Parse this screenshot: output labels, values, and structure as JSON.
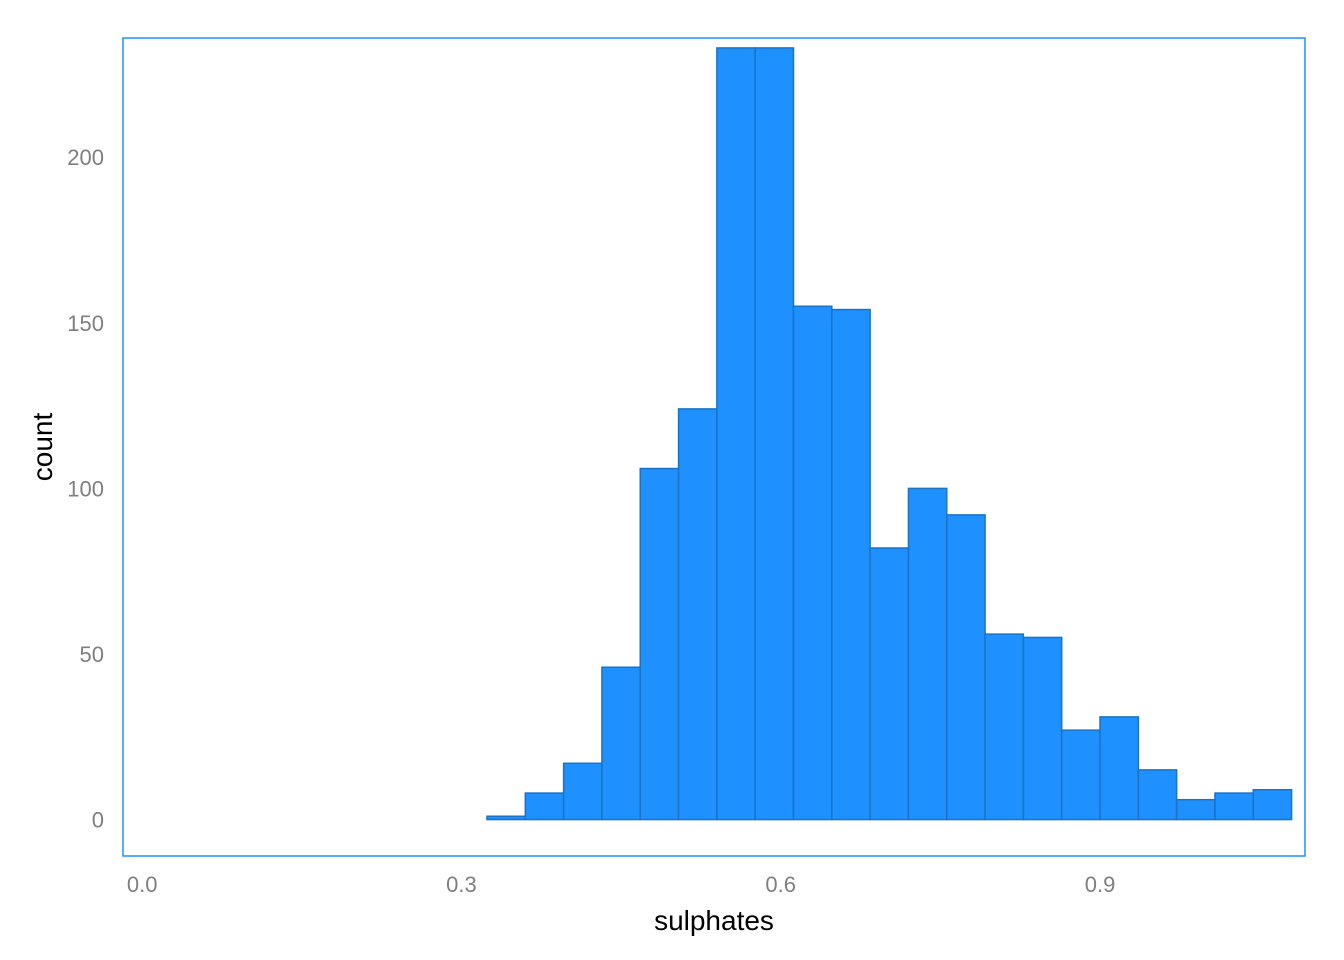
{
  "chart_data": {
    "type": "bar",
    "title": "",
    "xlabel": "sulphates",
    "ylabel": "count",
    "xlim": [
      -0.018,
      1.0926
    ],
    "ylim": [
      -11.0,
      236.0
    ],
    "x_ticks": [
      0.0,
      0.3,
      0.6,
      0.9
    ],
    "x_tick_labels": [
      "0.0",
      "0.3",
      "0.6",
      "0.9"
    ],
    "y_ticks": [
      0,
      50,
      100,
      150,
      200
    ],
    "y_tick_labels": [
      "0",
      "50",
      "100",
      "150",
      "200"
    ],
    "grid": false,
    "legend": "none",
    "bar_fill": "#1e90ff",
    "bar_stroke": "#1a73c4",
    "panel_border": "#1e90ff",
    "bins": [
      {
        "x0": 0.0,
        "x1": 0.036,
        "count": 0
      },
      {
        "x0": 0.036,
        "x1": 0.072,
        "count": 0
      },
      {
        "x0": 0.072,
        "x1": 0.108,
        "count": 0
      },
      {
        "x0": 0.108,
        "x1": 0.144,
        "count": 0
      },
      {
        "x0": 0.144,
        "x1": 0.18,
        "count": 0
      },
      {
        "x0": 0.18,
        "x1": 0.216,
        "count": 0
      },
      {
        "x0": 0.216,
        "x1": 0.252,
        "count": 0
      },
      {
        "x0": 0.252,
        "x1": 0.288,
        "count": 0
      },
      {
        "x0": 0.288,
        "x1": 0.324,
        "count": 0
      },
      {
        "x0": 0.324,
        "x1": 0.36,
        "count": 1
      },
      {
        "x0": 0.36,
        "x1": 0.396,
        "count": 8
      },
      {
        "x0": 0.396,
        "x1": 0.432,
        "count": 17
      },
      {
        "x0": 0.432,
        "x1": 0.468,
        "count": 46
      },
      {
        "x0": 0.468,
        "x1": 0.504,
        "count": 106
      },
      {
        "x0": 0.504,
        "x1": 0.54,
        "count": 124
      },
      {
        "x0": 0.54,
        "x1": 0.576,
        "count": 233
      },
      {
        "x0": 0.576,
        "x1": 0.612,
        "count": 233
      },
      {
        "x0": 0.612,
        "x1": 0.648,
        "count": 155
      },
      {
        "x0": 0.648,
        "x1": 0.684,
        "count": 154
      },
      {
        "x0": 0.684,
        "x1": 0.72,
        "count": 82
      },
      {
        "x0": 0.72,
        "x1": 0.756,
        "count": 100
      },
      {
        "x0": 0.756,
        "x1": 0.792,
        "count": 92
      },
      {
        "x0": 0.792,
        "x1": 0.828,
        "count": 56
      },
      {
        "x0": 0.828,
        "x1": 0.864,
        "count": 55
      },
      {
        "x0": 0.864,
        "x1": 0.9,
        "count": 27
      },
      {
        "x0": 0.9,
        "x1": 0.936,
        "count": 31
      },
      {
        "x0": 0.936,
        "x1": 0.972,
        "count": 15
      },
      {
        "x0": 0.972,
        "x1": 1.008,
        "count": 6
      },
      {
        "x0": 1.008,
        "x1": 1.044,
        "count": 8
      },
      {
        "x0": 1.044,
        "x1": 1.08,
        "count": 9
      }
    ]
  }
}
